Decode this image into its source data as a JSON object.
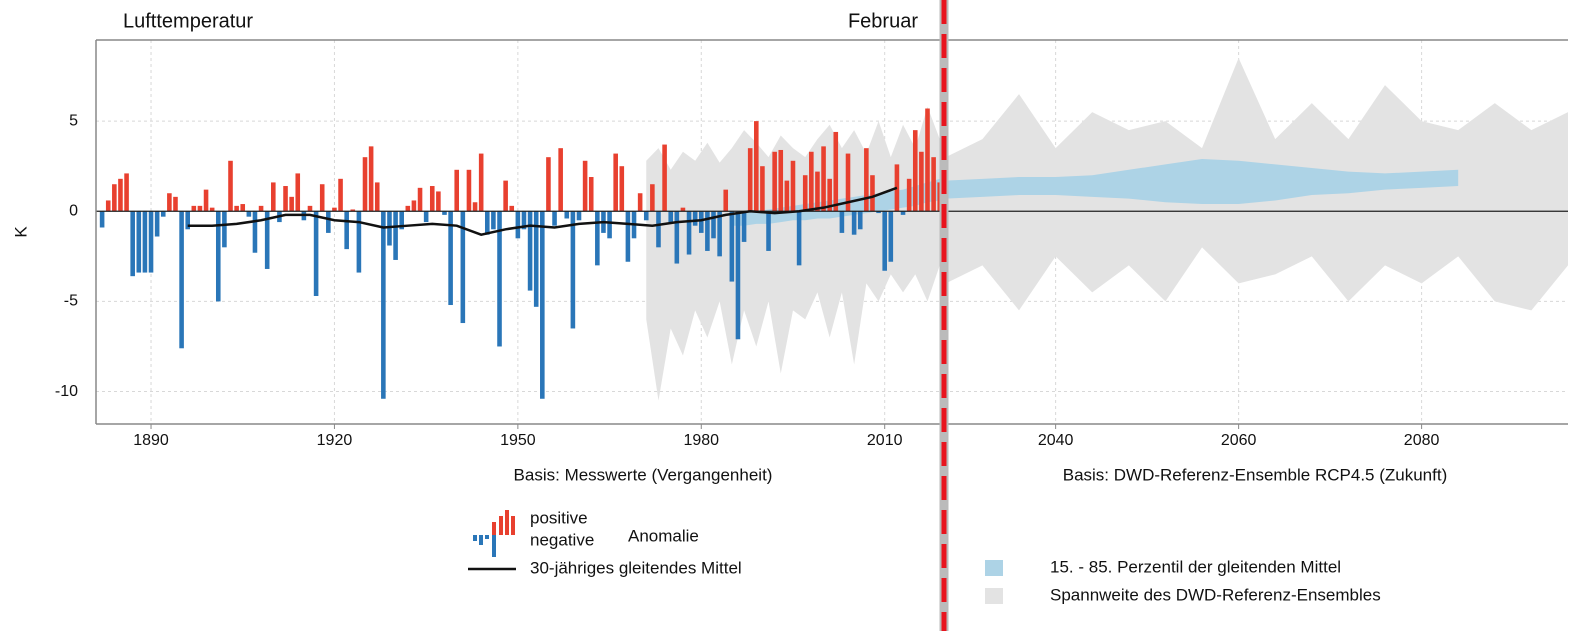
{
  "chart_data": [
    {
      "type": "bar",
      "title": "Lufttemperatur",
      "annotation": "Februar",
      "ylabel": "K",
      "xlabel": "Basis: Messwerte (Vergangenheit)",
      "legend": {
        "positive": "positive",
        "negative": "negative",
        "anomaly": "Anomalie"
      },
      "positive_color": "#e8402f",
      "negative_color": "#2a76b8",
      "xlim": [
        1881,
        2019.7
      ],
      "ylim": [
        -11.8,
        9.5
      ],
      "xticks": [
        1890,
        1920,
        1950,
        1980,
        2010
      ],
      "yticks": [
        -10,
        -5,
        0,
        5
      ],
      "grid": true,
      "x": [
        1882,
        1883,
        1884,
        1885,
        1886,
        1887,
        1888,
        1889,
        1890,
        1891,
        1892,
        1893,
        1894,
        1895,
        1896,
        1897,
        1898,
        1899,
        1900,
        1901,
        1902,
        1903,
        1904,
        1905,
        1906,
        1907,
        1908,
        1909,
        1910,
        1911,
        1912,
        1913,
        1914,
        1915,
        1916,
        1917,
        1918,
        1919,
        1920,
        1921,
        1922,
        1923,
        1924,
        1925,
        1926,
        1927,
        1928,
        1929,
        1930,
        1931,
        1932,
        1933,
        1934,
        1935,
        1936,
        1937,
        1938,
        1939,
        1940,
        1941,
        1942,
        1943,
        1944,
        1945,
        1946,
        1947,
        1948,
        1949,
        1950,
        1951,
        1952,
        1953,
        1954,
        1955,
        1956,
        1957,
        1958,
        1959,
        1960,
        1961,
        1962,
        1963,
        1964,
        1965,
        1966,
        1967,
        1968,
        1969,
        1970,
        1971,
        1972,
        1973,
        1974,
        1975,
        1976,
        1977,
        1978,
        1979,
        1980,
        1981,
        1982,
        1983,
        1984,
        1985,
        1986,
        1987,
        1988,
        1989,
        1990,
        1991,
        1992,
        1993,
        1994,
        1995,
        1996,
        1997,
        1998,
        1999,
        2000,
        2001,
        2002,
        2003,
        2004,
        2005,
        2006,
        2007,
        2008,
        2009,
        2010,
        2011,
        2012,
        2013,
        2014,
        2015,
        2016,
        2017,
        2018,
        2019
      ],
      "values": [
        -0.9,
        0.6,
        1.5,
        1.8,
        2.1,
        -3.6,
        -3.4,
        -3.4,
        -3.4,
        -1.4,
        -0.3,
        1.0,
        0.8,
        -7.6,
        -1.0,
        0.3,
        0.3,
        1.2,
        0.2,
        -5.0,
        -2.0,
        2.8,
        0.3,
        0.4,
        -0.3,
        -2.3,
        0.3,
        -3.2,
        1.6,
        -0.6,
        1.4,
        0.8,
        2.1,
        -0.5,
        0.3,
        -4.7,
        1.5,
        -1.2,
        0.2,
        1.8,
        -2.1,
        0.1,
        -3.4,
        3.0,
        3.6,
        1.6,
        -10.4,
        -1.9,
        -2.7,
        -1.0,
        0.3,
        0.6,
        1.3,
        -0.6,
        1.4,
        1.1,
        -0.2,
        -5.2,
        2.3,
        -6.2,
        2.3,
        0.5,
        3.2,
        -1.3,
        -1.0,
        -7.5,
        1.7,
        0.3,
        -1.5,
        -1.0,
        -4.4,
        -5.3,
        -10.4,
        3.0,
        -0.8,
        3.5,
        -0.4,
        -6.5,
        -0.5,
        2.8,
        1.9,
        -3.0,
        -1.2,
        -1.5,
        3.2,
        2.5,
        -2.8,
        -1.5,
        1.0,
        -0.5,
        1.5,
        -2.0,
        3.7,
        -0.6,
        -2.9,
        0.2,
        -2.4,
        -0.8,
        -1.2,
        -2.2,
        -1.5,
        -2.5,
        1.2,
        -3.9,
        -7.1,
        -1.7,
        3.5,
        5.0,
        2.5,
        -2.2,
        3.3,
        3.4,
        1.7,
        2.8,
        -3.0,
        2.0,
        3.3,
        2.2,
        3.6,
        1.8,
        4.4,
        -1.2,
        3.2,
        -1.3,
        -1.0,
        3.5,
        2.0,
        -0.1,
        -3.3,
        -2.8,
        2.6,
        -0.2,
        1.8,
        4.5,
        3.3,
        5.7,
        3.0,
        1.6
      ],
      "line": {
        "name": "30-jähriges gleitendes Mittel",
        "color": "#111111",
        "x": [
          1896,
          1900,
          1904,
          1908,
          1912,
          1916,
          1920,
          1924,
          1928,
          1932,
          1936,
          1940,
          1944,
          1948,
          1952,
          1956,
          1960,
          1964,
          1968,
          1972,
          1976,
          1980,
          1984,
          1988,
          1992,
          1996,
          2000,
          2004,
          2008,
          2012
        ],
        "values": [
          -0.8,
          -0.8,
          -0.7,
          -0.5,
          -0.2,
          -0.2,
          -0.5,
          -0.6,
          -0.9,
          -0.8,
          -0.7,
          -0.8,
          -1.3,
          -1.0,
          -0.8,
          -0.9,
          -0.7,
          -0.6,
          -0.7,
          -0.8,
          -0.6,
          -0.5,
          -0.2,
          0.0,
          -0.1,
          0.0,
          0.2,
          0.5,
          0.8,
          1.3
        ]
      },
      "bands": [
        {
          "color": "#e3e3e3",
          "x": [
            1971,
            1973,
            1975,
            1977,
            1979,
            1981,
            1983,
            1985,
            1987,
            1989,
            1991,
            1993,
            1995,
            1997,
            1999,
            2001,
            2003,
            2005,
            2007,
            2009,
            2011,
            2013,
            2015,
            2017,
            2019
          ],
          "upper": [
            2.8,
            3.5,
            2.3,
            3.3,
            2.8,
            3.8,
            2.7,
            3.5,
            4.5,
            3.8,
            3.0,
            4.2,
            3.5,
            3.0,
            4.0,
            4.8,
            3.5,
            4.5,
            3.2,
            5.0,
            3.0,
            4.8,
            3.5,
            5.8,
            4.0
          ],
          "lower": [
            -6.0,
            -10.5,
            -6.5,
            -8.0,
            -5.5,
            -7.0,
            -5.0,
            -8.5,
            -5.5,
            -7.5,
            -5.0,
            -9.0,
            -5.5,
            -6.0,
            -4.5,
            -7.0,
            -4.5,
            -8.5,
            -4.0,
            -5.0,
            -3.5,
            -4.5,
            -3.5,
            -5.0,
            -3.0
          ]
        },
        {
          "color": "#add3e6",
          "x": [
            1985,
            1987,
            1989,
            1991,
            1993,
            1995,
            1997,
            1999,
            2001,
            2003,
            2005,
            2007,
            2009,
            2011,
            2013,
            2015,
            2017,
            2019
          ],
          "upper": [
            -0.1,
            0.0,
            0.0,
            0.1,
            0.2,
            0.3,
            0.4,
            0.5,
            0.6,
            0.7,
            0.8,
            0.9,
            1.0,
            1.1,
            1.2,
            1.4,
            1.6,
            1.8
          ],
          "lower": [
            -0.8,
            -0.8,
            -0.7,
            -0.7,
            -0.6,
            -0.5,
            -0.5,
            -0.4,
            -0.4,
            -0.3,
            -0.2,
            -0.1,
            0.0,
            0.1,
            0.2,
            0.3,
            0.5,
            0.6
          ]
        }
      ]
    },
    {
      "type": "area",
      "xlabel": "Basis: DWD-Referenz-Ensemble RCP4.5 (Zukunft)",
      "xlim": [
        2027.8,
        2096
      ],
      "ylim": [
        -11.8,
        9.5
      ],
      "xticks": [
        2040,
        2060,
        2080
      ],
      "yticks": [
        -10,
        -5,
        0,
        5
      ],
      "grid": true,
      "bands": [
        {
          "name": "Spannweite des DWD-Referenz-Ensembles",
          "color": "#e3e3e3",
          "x": [
            2028,
            2032,
            2036,
            2040,
            2044,
            2048,
            2052,
            2056,
            2060,
            2064,
            2068,
            2072,
            2076,
            2080,
            2084,
            2088,
            2092,
            2096
          ],
          "upper": [
            3.0,
            4.0,
            6.5,
            3.5,
            5.5,
            4.5,
            5.0,
            3.5,
            8.5,
            4.0,
            6.0,
            4.0,
            7.0,
            5.0,
            4.5,
            6.0,
            4.5,
            5.5
          ],
          "lower": [
            -4.0,
            -3.0,
            -5.5,
            -2.5,
            -4.5,
            -3.0,
            -5.0,
            -2.0,
            -4.0,
            -3.5,
            -2.5,
            -5.0,
            -3.0,
            -4.0,
            -2.5,
            -5.0,
            -5.5,
            -3.0
          ]
        },
        {
          "name": "15. - 85. Perzentil der gleitenden Mittel",
          "color": "#add3e6",
          "x": [
            2028,
            2032,
            2036,
            2040,
            2044,
            2048,
            2052,
            2056,
            2060,
            2064,
            2068,
            2072,
            2076,
            2080,
            2084
          ],
          "upper": [
            1.7,
            1.8,
            1.9,
            1.9,
            2.0,
            2.3,
            2.6,
            2.9,
            2.8,
            2.6,
            2.4,
            2.2,
            2.1,
            2.2,
            2.3
          ],
          "lower": [
            0.7,
            0.8,
            0.9,
            0.9,
            0.8,
            0.7,
            0.5,
            0.4,
            0.4,
            0.6,
            0.9,
            1.0,
            1.2,
            1.3,
            1.4
          ]
        }
      ]
    }
  ]
}
